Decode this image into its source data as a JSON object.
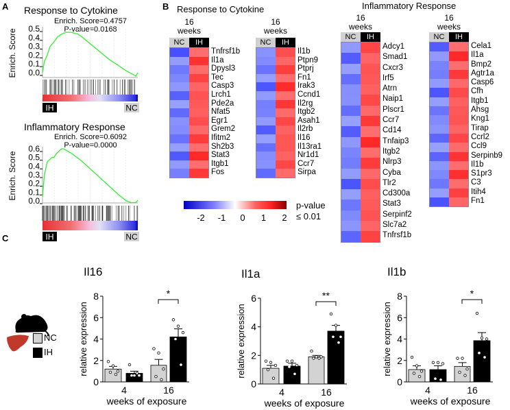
{
  "panel_labels": {
    "a": "A",
    "b": "B",
    "c": "C"
  },
  "chart_data": [
    {
      "type": "line",
      "panel": "A",
      "title": "Response to Cytokine",
      "enrich_score": "Enrich. Score=0.4757",
      "p_value": "P-value=0.0168",
      "ylabel": "Enrich. Score",
      "yticks": [
        "0.5",
        "0.4",
        "0.3",
        "0.2",
        "0.1",
        "0.0"
      ],
      "ylim": [
        -0.055,
        0.5
      ],
      "x": [
        0,
        0.02,
        0.05,
        0.08,
        0.12,
        0.16,
        0.2,
        0.25,
        0.3,
        0.37,
        0.4,
        0.5,
        0.6,
        0.7,
        0.8,
        0.88,
        0.95,
        0.98,
        0.99,
        1
      ],
      "y": [
        0,
        0.13,
        0.2,
        0.3,
        0.35,
        0.41,
        0.44,
        0.46,
        0.46,
        0.44,
        0.42,
        0.33,
        0.24,
        0.15,
        0.08,
        0.02,
        -0.02,
        -0.04,
        -0.02,
        0.0
      ],
      "line_color": "#33ee33",
      "left_label": "IH",
      "right_label": "NC"
    },
    {
      "type": "line",
      "panel": "A",
      "title": "Inflammatory Response",
      "enrich_score": "Enrich. Score=0.6092",
      "p_value": "P-value=0.0000",
      "ylabel": "Enrich. Score",
      "yticks": [
        "0.6",
        "0.5",
        "0.4",
        "0.3",
        "0.2",
        "0.1",
        "0.0"
      ],
      "ylim": [
        -0.04,
        0.6
      ],
      "x": [
        0,
        0.02,
        0.05,
        0.1,
        0.12,
        0.15,
        0.2,
        0.22,
        0.3,
        0.4,
        0.5,
        0.6,
        0.7,
        0.8,
        0.88,
        0.93,
        0.97,
        0.99,
        1
      ],
      "y": [
        0.05,
        0.3,
        0.45,
        0.5,
        0.5,
        0.55,
        0.6,
        0.6,
        0.55,
        0.47,
        0.37,
        0.27,
        0.17,
        0.07,
        0.0,
        -0.02,
        -0.02,
        -0.01,
        0.01
      ],
      "line_color": "#33ee33",
      "left_label": "IH",
      "right_label": "NC"
    },
    {
      "type": "bar",
      "panel": "C",
      "title": "Il16",
      "ylabel": "relative expression",
      "xlabel": "weeks of exposure",
      "categories": [
        "4",
        "16"
      ],
      "ylim": [
        0,
        8
      ],
      "yticks": [
        0,
        2,
        4,
        6,
        8
      ],
      "significance": "*",
      "series": [
        {
          "name": "NC",
          "color": "#d3d3d3",
          "values": [
            1.2,
            1.55
          ],
          "sem_top": [
            1.45,
            2.1
          ],
          "points": [
            [
              1.9,
              1.5,
              1.0,
              0.9,
              0.7
            ],
            [
              3.1,
              2.7,
              1.2,
              0.5,
              0.2
            ]
          ]
        },
        {
          "name": "IH",
          "color": "#000000",
          "values": [
            0.8,
            4.2
          ],
          "sem_top": [
            1.0,
            4.95
          ],
          "points": [
            [
              1.6,
              0.6,
              0.6,
              0.6,
              0.8
            ],
            [
              5.8,
              5.2,
              4.6,
              4.0,
              1.6
            ]
          ]
        }
      ]
    },
    {
      "type": "bar",
      "panel": "C",
      "title": "Il1a",
      "ylabel": "relative expression",
      "xlabel": "weeks of exposure",
      "categories": [
        "4",
        "16"
      ],
      "ylim": [
        0,
        6
      ],
      "yticks": [
        0,
        2,
        4,
        6
      ],
      "significance": "**",
      "series": [
        {
          "name": "NC",
          "color": "#d3d3d3",
          "values": [
            1.1,
            1.9
          ],
          "sem_top": [
            1.3,
            2.0
          ],
          "points": [
            [
              1.6,
              1.5,
              1.3,
              1.0,
              0.4
            ],
            [
              2.3,
              1.9,
              1.9,
              1.8,
              1.8
            ]
          ]
        },
        {
          "name": "IH",
          "color": "#000000",
          "values": [
            1.25,
            3.7
          ],
          "sem_top": [
            1.45,
            4.1
          ],
          "points": [
            [
              1.6,
              1.6,
              1.3,
              1.2,
              0.7
            ],
            [
              4.9,
              4.1,
              3.3,
              3.3,
              2.9
            ]
          ]
        }
      ]
    },
    {
      "type": "bar",
      "panel": "C",
      "title": "Il1b",
      "ylabel": "relative expression",
      "xlabel": "weeks of exposure",
      "categories": [
        "4",
        "16"
      ],
      "ylim": [
        0,
        8
      ],
      "yticks": [
        0,
        2,
        4,
        6,
        8
      ],
      "significance": "*",
      "series": [
        {
          "name": "NC",
          "color": "#d3d3d3",
          "values": [
            1.15,
            1.45
          ],
          "sem_top": [
            1.5,
            1.8
          ],
          "points": [
            [
              2.3,
              1.5,
              1.0,
              0.8,
              0.5
            ],
            [
              2.2,
              2.2,
              1.2,
              0.9,
              0.6
            ]
          ]
        },
        {
          "name": "IH",
          "color": "#000000",
          "values": [
            1.15,
            3.85
          ],
          "sem_top": [
            1.5,
            4.6
          ],
          "points": [
            [
              1.8,
              1.8,
              1.7,
              0.3,
              0.2
            ],
            [
              6.4,
              4.1,
              4.0,
              2.7,
              2.3
            ]
          ]
        }
      ]
    }
  ],
  "heatmaps": {
    "title_cytokine": "Response to Cytokine",
    "title_inflammatory": "Inflammatory Response",
    "weeks": "16 weeks",
    "nc": "NC",
    "ih": "IH",
    "maps": [
      {
        "genes": [
          "Tnfrsf1b",
          "Il1a",
          "Dpysl3",
          "Tec",
          "Casp3",
          "Lrch1",
          "Pde2a",
          "Nfat5",
          "Egr1",
          "Grem2",
          "Ifitm2",
          "Sh2b3",
          "Stat3",
          "Itgb1",
          "Fos"
        ]
      },
      {
        "genes": [
          "Il1b",
          "Ptpn9",
          "Ptprj",
          "Fn1",
          "Irak3",
          "Ccnd1",
          "Il2rg",
          "Itgb2",
          "Asah1",
          "Il2rb",
          "Il16",
          "Il13ra1",
          "Nr1d1",
          "Ccr7",
          "Sirpa"
        ]
      },
      {
        "genes": [
          "Adcy1",
          "Smad1",
          "Cxcr3",
          "Irf5",
          "Atrn",
          "Naip1",
          "Plscr1",
          "Ccr7",
          "Cd14",
          "Tnfaip3",
          "Itgb2",
          "Nlrp3",
          "Cyba",
          "Tlr2",
          "Cd300a",
          "Stat3",
          "Serpinf2",
          "Slc7a2",
          "Tnfrsf1b"
        ]
      },
      {
        "genes": [
          "Cela1",
          "Il1a",
          "Bmp2",
          "Agtr1a",
          "Casp6",
          "Cfh",
          "Itgb1",
          "Ahsg",
          "Kng1",
          "Tirap",
          "Ccrl2",
          "Ccl9",
          "Serpinb9",
          "Il1b",
          "S1pr3",
          "C3",
          "Itih4",
          "Fn1"
        ]
      }
    ],
    "scale": {
      "ticks": [
        "-2",
        "-1",
        "0",
        "1",
        "2"
      ],
      "pvalue": "p-value",
      "threshold": "≤ 0.01",
      "colors": [
        "#0000c8",
        "#ffffff",
        "#ff2020",
        "#8b0000"
      ]
    }
  },
  "legend": {
    "nc": "NC",
    "ih": "IH",
    "nc_color": "#d3d3d3",
    "ih_color": "#000000",
    "icons": [
      "mouse-icon",
      "liver-icon"
    ]
  }
}
